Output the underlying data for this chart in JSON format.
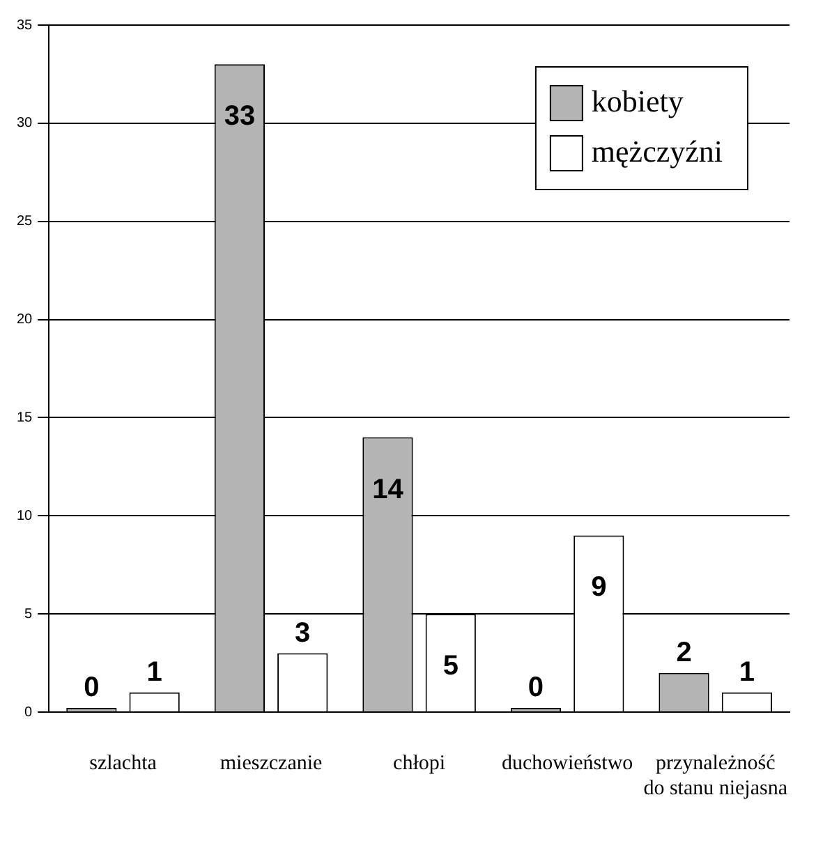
{
  "chart_data": {
    "type": "bar",
    "categories": [
      "szlachta",
      "mieszczanie",
      "chłopi",
      "duchowieństwo",
      "przynależność do stanu niejasna"
    ],
    "series": [
      {
        "name": "kobiety",
        "color": "#b4b4b4",
        "values": [
          0,
          33,
          14,
          0,
          2
        ]
      },
      {
        "name": "mężczyźni",
        "color": "#ffffff",
        "values": [
          1,
          3,
          5,
          9,
          1
        ]
      }
    ],
    "ylim": [
      0,
      35
    ],
    "yticks": [
      0,
      5,
      10,
      15,
      20,
      25,
      30,
      35
    ],
    "grid": "y",
    "legend": "top right",
    "data_labels": true
  }
}
